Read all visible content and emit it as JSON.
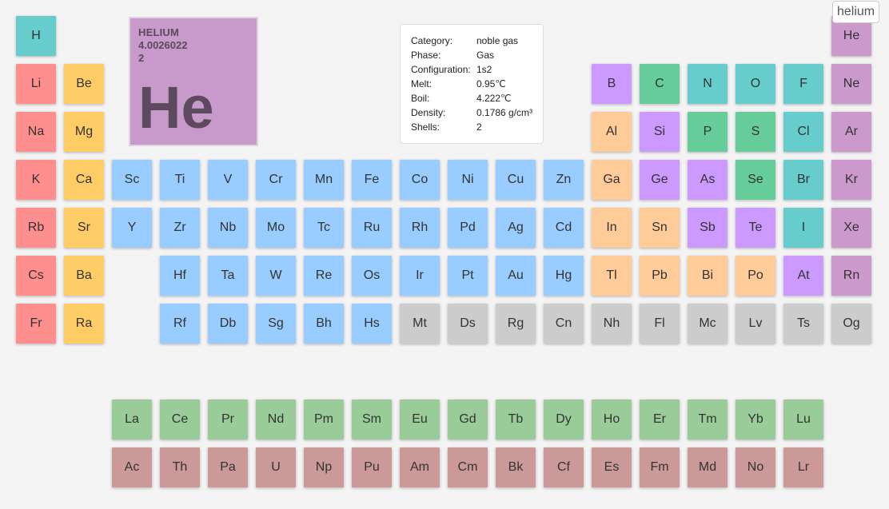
{
  "colors": {
    "alkali metal": "#ff8e8e",
    "alkaline earth metal": "#ffcc66",
    "transition metal": "#99ccff",
    "post-transition metal": "#ffcc99",
    "metalloid": "#cc99ff",
    "diatomic nonmetal": "#66cccc",
    "polyatomic nonmetal": "#66cc99",
    "noble gas": "#cc99cc",
    "unknown": "#cccccc",
    "lanthanide": "#99cc99",
    "actinide": "#cc9999"
  },
  "detail": {
    "name": "HELIUM",
    "mass": "4.0026022",
    "number": "2",
    "symbol": "He"
  },
  "info": [
    {
      "label": "Category:",
      "value": "noble gas"
    },
    {
      "label": "Phase:",
      "value": "Gas"
    },
    {
      "label": "Configuration:",
      "value": "1s2"
    },
    {
      "label": "Melt:",
      "value": "0.95℃"
    },
    {
      "label": "Boil:",
      "value": "4.222℃"
    },
    {
      "label": "Density:",
      "value": "0.1786 g/cm³"
    },
    {
      "label": "Shells:",
      "value": "2"
    }
  ],
  "tooltip": "helium",
  "elements": [
    {
      "s": "H",
      "c": "diatomic nonmetal",
      "col": 1,
      "row": 1
    },
    {
      "s": "He",
      "c": "noble gas",
      "col": 18,
      "row": 1
    },
    {
      "s": "Li",
      "c": "alkali metal",
      "col": 1,
      "row": 2
    },
    {
      "s": "Be",
      "c": "alkaline earth metal",
      "col": 2,
      "row": 2
    },
    {
      "s": "B",
      "c": "metalloid",
      "col": 13,
      "row": 2
    },
    {
      "s": "C",
      "c": "polyatomic nonmetal",
      "col": 14,
      "row": 2
    },
    {
      "s": "N",
      "c": "diatomic nonmetal",
      "col": 15,
      "row": 2
    },
    {
      "s": "O",
      "c": "diatomic nonmetal",
      "col": 16,
      "row": 2
    },
    {
      "s": "F",
      "c": "diatomic nonmetal",
      "col": 17,
      "row": 2
    },
    {
      "s": "Ne",
      "c": "noble gas",
      "col": 18,
      "row": 2
    },
    {
      "s": "Na",
      "c": "alkali metal",
      "col": 1,
      "row": 3
    },
    {
      "s": "Mg",
      "c": "alkaline earth metal",
      "col": 2,
      "row": 3
    },
    {
      "s": "Al",
      "c": "post-transition metal",
      "col": 13,
      "row": 3
    },
    {
      "s": "Si",
      "c": "metalloid",
      "col": 14,
      "row": 3
    },
    {
      "s": "P",
      "c": "polyatomic nonmetal",
      "col": 15,
      "row": 3
    },
    {
      "s": "S",
      "c": "polyatomic nonmetal",
      "col": 16,
      "row": 3
    },
    {
      "s": "Cl",
      "c": "diatomic nonmetal",
      "col": 17,
      "row": 3
    },
    {
      "s": "Ar",
      "c": "noble gas",
      "col": 18,
      "row": 3
    },
    {
      "s": "K",
      "c": "alkali metal",
      "col": 1,
      "row": 4
    },
    {
      "s": "Ca",
      "c": "alkaline earth metal",
      "col": 2,
      "row": 4
    },
    {
      "s": "Sc",
      "c": "transition metal",
      "col": 3,
      "row": 4
    },
    {
      "s": "Ti",
      "c": "transition metal",
      "col": 4,
      "row": 4
    },
    {
      "s": "V",
      "c": "transition metal",
      "col": 5,
      "row": 4
    },
    {
      "s": "Cr",
      "c": "transition metal",
      "col": 6,
      "row": 4
    },
    {
      "s": "Mn",
      "c": "transition metal",
      "col": 7,
      "row": 4
    },
    {
      "s": "Fe",
      "c": "transition metal",
      "col": 8,
      "row": 4
    },
    {
      "s": "Co",
      "c": "transition metal",
      "col": 9,
      "row": 4
    },
    {
      "s": "Ni",
      "c": "transition metal",
      "col": 10,
      "row": 4
    },
    {
      "s": "Cu",
      "c": "transition metal",
      "col": 11,
      "row": 4
    },
    {
      "s": "Zn",
      "c": "transition metal",
      "col": 12,
      "row": 4
    },
    {
      "s": "Ga",
      "c": "post-transition metal",
      "col": 13,
      "row": 4
    },
    {
      "s": "Ge",
      "c": "metalloid",
      "col": 14,
      "row": 4
    },
    {
      "s": "As",
      "c": "metalloid",
      "col": 15,
      "row": 4
    },
    {
      "s": "Se",
      "c": "polyatomic nonmetal",
      "col": 16,
      "row": 4
    },
    {
      "s": "Br",
      "c": "diatomic nonmetal",
      "col": 17,
      "row": 4
    },
    {
      "s": "Kr",
      "c": "noble gas",
      "col": 18,
      "row": 4
    },
    {
      "s": "Rb",
      "c": "alkali metal",
      "col": 1,
      "row": 5
    },
    {
      "s": "Sr",
      "c": "alkaline earth metal",
      "col": 2,
      "row": 5
    },
    {
      "s": "Y",
      "c": "transition metal",
      "col": 3,
      "row": 5
    },
    {
      "s": "Zr",
      "c": "transition metal",
      "col": 4,
      "row": 5
    },
    {
      "s": "Nb",
      "c": "transition metal",
      "col": 5,
      "row": 5
    },
    {
      "s": "Mo",
      "c": "transition metal",
      "col": 6,
      "row": 5
    },
    {
      "s": "Tc",
      "c": "transition metal",
      "col": 7,
      "row": 5
    },
    {
      "s": "Ru",
      "c": "transition metal",
      "col": 8,
      "row": 5
    },
    {
      "s": "Rh",
      "c": "transition metal",
      "col": 9,
      "row": 5
    },
    {
      "s": "Pd",
      "c": "transition metal",
      "col": 10,
      "row": 5
    },
    {
      "s": "Ag",
      "c": "transition metal",
      "col": 11,
      "row": 5
    },
    {
      "s": "Cd",
      "c": "transition metal",
      "col": 12,
      "row": 5
    },
    {
      "s": "In",
      "c": "post-transition metal",
      "col": 13,
      "row": 5
    },
    {
      "s": "Sn",
      "c": "post-transition metal",
      "col": 14,
      "row": 5
    },
    {
      "s": "Sb",
      "c": "metalloid",
      "col": 15,
      "row": 5
    },
    {
      "s": "Te",
      "c": "metalloid",
      "col": 16,
      "row": 5
    },
    {
      "s": "I",
      "c": "diatomic nonmetal",
      "col": 17,
      "row": 5
    },
    {
      "s": "Xe",
      "c": "noble gas",
      "col": 18,
      "row": 5
    },
    {
      "s": "Cs",
      "c": "alkali metal",
      "col": 1,
      "row": 6
    },
    {
      "s": "Ba",
      "c": "alkaline earth metal",
      "col": 2,
      "row": 6
    },
    {
      "s": "Hf",
      "c": "transition metal",
      "col": 4,
      "row": 6
    },
    {
      "s": "Ta",
      "c": "transition metal",
      "col": 5,
      "row": 6
    },
    {
      "s": "W",
      "c": "transition metal",
      "col": 6,
      "row": 6
    },
    {
      "s": "Re",
      "c": "transition metal",
      "col": 7,
      "row": 6
    },
    {
      "s": "Os",
      "c": "transition metal",
      "col": 8,
      "row": 6
    },
    {
      "s": "Ir",
      "c": "transition metal",
      "col": 9,
      "row": 6
    },
    {
      "s": "Pt",
      "c": "transition metal",
      "col": 10,
      "row": 6
    },
    {
      "s": "Au",
      "c": "transition metal",
      "col": 11,
      "row": 6
    },
    {
      "s": "Hg",
      "c": "transition metal",
      "col": 12,
      "row": 6
    },
    {
      "s": "Tl",
      "c": "post-transition metal",
      "col": 13,
      "row": 6
    },
    {
      "s": "Pb",
      "c": "post-transition metal",
      "col": 14,
      "row": 6
    },
    {
      "s": "Bi",
      "c": "post-transition metal",
      "col": 15,
      "row": 6
    },
    {
      "s": "Po",
      "c": "post-transition metal",
      "col": 16,
      "row": 6
    },
    {
      "s": "At",
      "c": "metalloid",
      "col": 17,
      "row": 6
    },
    {
      "s": "Rn",
      "c": "noble gas",
      "col": 18,
      "row": 6
    },
    {
      "s": "Fr",
      "c": "alkali metal",
      "col": 1,
      "row": 7
    },
    {
      "s": "Ra",
      "c": "alkaline earth metal",
      "col": 2,
      "row": 7
    },
    {
      "s": "Rf",
      "c": "transition metal",
      "col": 4,
      "row": 7
    },
    {
      "s": "Db",
      "c": "transition metal",
      "col": 5,
      "row": 7
    },
    {
      "s": "Sg",
      "c": "transition metal",
      "col": 6,
      "row": 7
    },
    {
      "s": "Bh",
      "c": "transition metal",
      "col": 7,
      "row": 7
    },
    {
      "s": "Hs",
      "c": "transition metal",
      "col": 8,
      "row": 7
    },
    {
      "s": "Mt",
      "c": "unknown",
      "col": 9,
      "row": 7
    },
    {
      "s": "Ds",
      "c": "unknown",
      "col": 10,
      "row": 7
    },
    {
      "s": "Rg",
      "c": "unknown",
      "col": 11,
      "row": 7
    },
    {
      "s": "Cn",
      "c": "unknown",
      "col": 12,
      "row": 7
    },
    {
      "s": "Nh",
      "c": "unknown",
      "col": 13,
      "row": 7
    },
    {
      "s": "Fl",
      "c": "unknown",
      "col": 14,
      "row": 7
    },
    {
      "s": "Mc",
      "c": "unknown",
      "col": 15,
      "row": 7
    },
    {
      "s": "Lv",
      "c": "unknown",
      "col": 16,
      "row": 7
    },
    {
      "s": "Ts",
      "c": "unknown",
      "col": 17,
      "row": 7
    },
    {
      "s": "Og",
      "c": "unknown",
      "col": 18,
      "row": 7
    },
    {
      "s": "La",
      "c": "lanthanide",
      "col": 3,
      "row": 9
    },
    {
      "s": "Ce",
      "c": "lanthanide",
      "col": 4,
      "row": 9
    },
    {
      "s": "Pr",
      "c": "lanthanide",
      "col": 5,
      "row": 9
    },
    {
      "s": "Nd",
      "c": "lanthanide",
      "col": 6,
      "row": 9
    },
    {
      "s": "Pm",
      "c": "lanthanide",
      "col": 7,
      "row": 9
    },
    {
      "s": "Sm",
      "c": "lanthanide",
      "col": 8,
      "row": 9
    },
    {
      "s": "Eu",
      "c": "lanthanide",
      "col": 9,
      "row": 9
    },
    {
      "s": "Gd",
      "c": "lanthanide",
      "col": 10,
      "row": 9
    },
    {
      "s": "Tb",
      "c": "lanthanide",
      "col": 11,
      "row": 9
    },
    {
      "s": "Dy",
      "c": "lanthanide",
      "col": 12,
      "row": 9
    },
    {
      "s": "Ho",
      "c": "lanthanide",
      "col": 13,
      "row": 9
    },
    {
      "s": "Er",
      "c": "lanthanide",
      "col": 14,
      "row": 9
    },
    {
      "s": "Tm",
      "c": "lanthanide",
      "col": 15,
      "row": 9
    },
    {
      "s": "Yb",
      "c": "lanthanide",
      "col": 16,
      "row": 9
    },
    {
      "s": "Lu",
      "c": "lanthanide",
      "col": 17,
      "row": 9
    },
    {
      "s": "Ac",
      "c": "actinide",
      "col": 3,
      "row": 10
    },
    {
      "s": "Th",
      "c": "actinide",
      "col": 4,
      "row": 10
    },
    {
      "s": "Pa",
      "c": "actinide",
      "col": 5,
      "row": 10
    },
    {
      "s": "U",
      "c": "actinide",
      "col": 6,
      "row": 10
    },
    {
      "s": "Np",
      "c": "actinide",
      "col": 7,
      "row": 10
    },
    {
      "s": "Pu",
      "c": "actinide",
      "col": 8,
      "row": 10
    },
    {
      "s": "Am",
      "c": "actinide",
      "col": 9,
      "row": 10
    },
    {
      "s": "Cm",
      "c": "actinide",
      "col": 10,
      "row": 10
    },
    {
      "s": "Bk",
      "c": "actinide",
      "col": 11,
      "row": 10
    },
    {
      "s": "Cf",
      "c": "actinide",
      "col": 12,
      "row": 10
    },
    {
      "s": "Es",
      "c": "actinide",
      "col": 13,
      "row": 10
    },
    {
      "s": "Fm",
      "c": "actinide",
      "col": 14,
      "row": 10
    },
    {
      "s": "Md",
      "c": "actinide",
      "col": 15,
      "row": 10
    },
    {
      "s": "No",
      "c": "actinide",
      "col": 16,
      "row": 10
    },
    {
      "s": "Lr",
      "c": "actinide",
      "col": 17,
      "row": 10
    }
  ]
}
